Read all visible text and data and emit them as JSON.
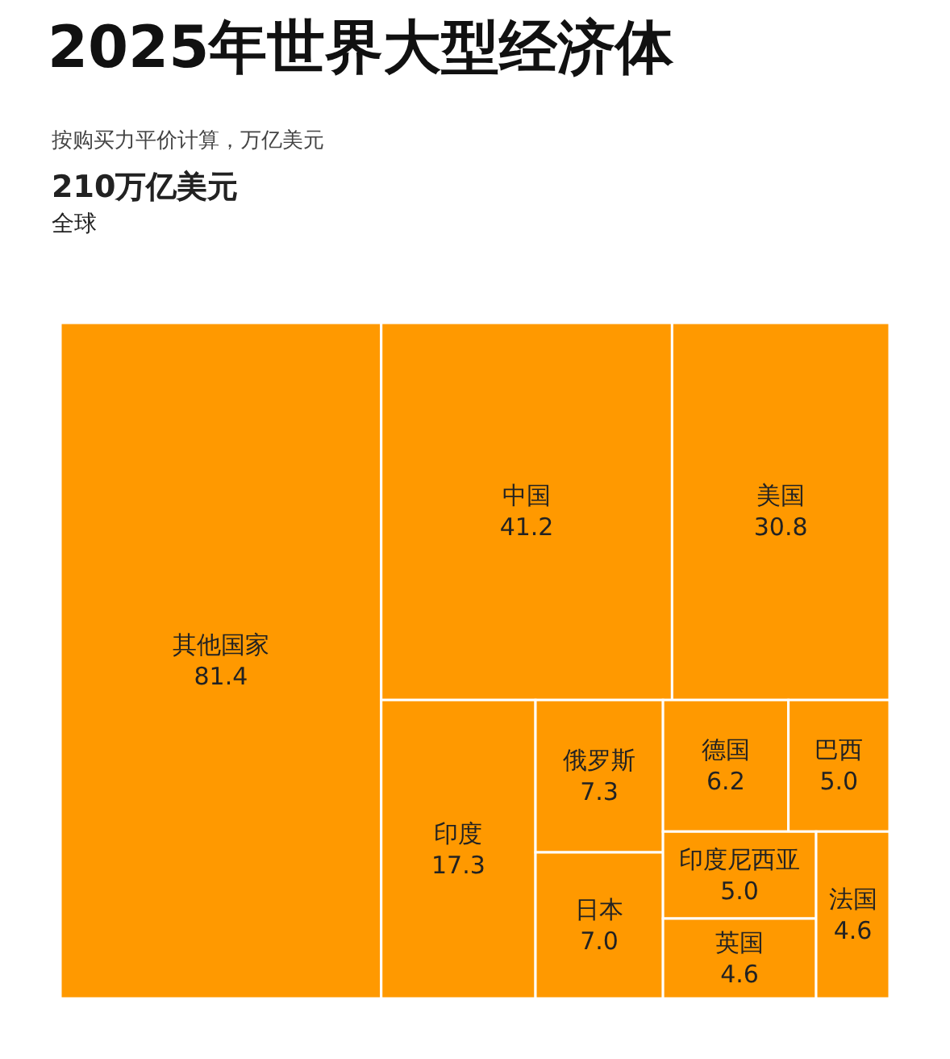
{
  "chart_data": {
    "type": "other",
    "title": "2025年世界大型经济体",
    "subtitle": "按购买力平价计算，万亿美元",
    "annotations": [
      "210万亿美元",
      "全球"
    ],
    "categories": [
      "其他国家",
      "中国",
      "美国",
      "印度",
      "俄罗斯",
      "日本",
      "德国",
      "巴西",
      "印度尼西亚",
      "英国",
      "法国"
    ],
    "values": [
      81.4,
      41.2,
      30.8,
      17.3,
      7.3,
      7.0,
      6.2,
      5.0,
      5.0,
      4.6,
      4.6
    ],
    "value_labels": [
      "81.4",
      "41.2",
      "30.8",
      "17.3",
      "7.3",
      "7.0",
      "6.2",
      "5.0",
      "5.0",
      "4.6",
      "4.6"
    ],
    "color": "#ff9900"
  }
}
